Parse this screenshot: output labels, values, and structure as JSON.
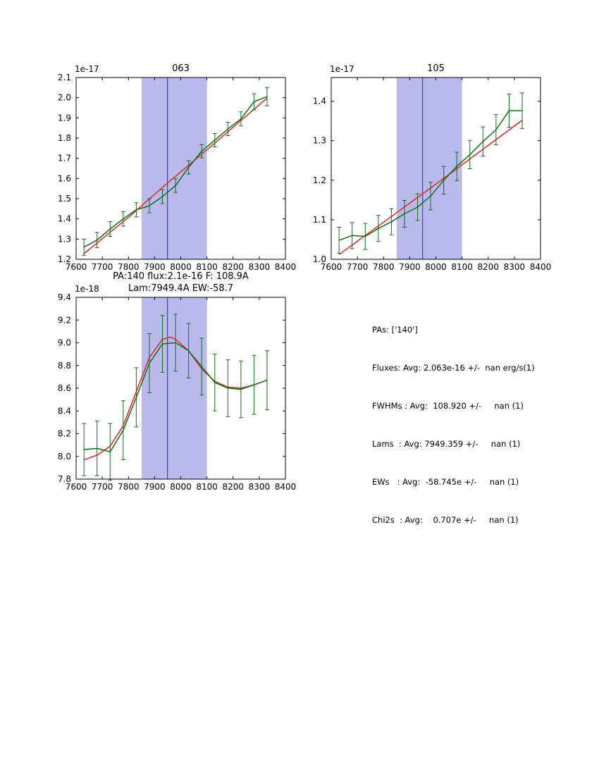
{
  "figure": {
    "background": "#ffffff"
  },
  "chart_data": [
    {
      "id": "plot-063",
      "type": "line",
      "title_lines": [
        "063"
      ],
      "offset_label": "1e-17",
      "xlabel": "",
      "ylabel": "",
      "xlim": [
        7600,
        8400
      ],
      "ylim": [
        1.2,
        2.1
      ],
      "xticks": [
        7600,
        7700,
        7800,
        7900,
        8000,
        8100,
        8200,
        8300,
        8400
      ],
      "yticks": [
        1.2,
        1.3,
        1.4,
        1.5,
        1.6,
        1.7,
        1.8,
        1.9,
        2.0,
        2.1
      ],
      "grid": false,
      "legend": "none",
      "band": {
        "x0": 7850,
        "x1": 8100,
        "color": "#b9b9ee"
      },
      "vline": {
        "x": 7949.359,
        "color": "#2a2a9c"
      },
      "series": [
        {
          "name": "fit",
          "color": "#e02424",
          "x": [
            7630,
            7800,
            7950,
            8100,
            8330
          ],
          "y": [
            1.228,
            1.408,
            1.578,
            1.742,
            1.998
          ]
        },
        {
          "name": "spectrum",
          "color": "#0f6e14",
          "x": [
            7630,
            7680,
            7730,
            7780,
            7830,
            7880,
            7930,
            7980,
            8030,
            8080,
            8130,
            8180,
            8230,
            8280,
            8330
          ],
          "y": [
            1.26,
            1.295,
            1.35,
            1.4,
            1.445,
            1.465,
            1.51,
            1.565,
            1.655,
            1.735,
            1.79,
            1.845,
            1.895,
            1.98,
            2.005
          ],
          "yerr": [
            0.04,
            0.038,
            0.037,
            0.036,
            0.035,
            0.035,
            0.034,
            0.034,
            0.033,
            0.033,
            0.033,
            0.033,
            0.035,
            0.04,
            0.045
          ]
        }
      ]
    },
    {
      "id": "plot-105",
      "type": "line",
      "title_lines": [
        "105"
      ],
      "offset_label": "1e-17",
      "xlabel": "",
      "ylabel": "",
      "xlim": [
        7600,
        8400
      ],
      "ylim": [
        1.0,
        1.46
      ],
      "xticks": [
        7600,
        7700,
        7800,
        7900,
        8000,
        8100,
        8200,
        8300,
        8400
      ],
      "yticks": [
        1.0,
        1.1,
        1.2,
        1.3,
        1.4
      ],
      "grid": false,
      "legend": "none",
      "band": {
        "x0": 7850,
        "x1": 8100,
        "color": "#b9b9ee"
      },
      "vline": {
        "x": 7949.359,
        "color": "#2a2a9c"
      },
      "series": [
        {
          "name": "fit",
          "color": "#e02424",
          "x": [
            7630,
            8000,
            8330
          ],
          "y": [
            1.012,
            1.19,
            1.352
          ]
        },
        {
          "name": "spectrum",
          "color": "#0f6e14",
          "x": [
            7630,
            7680,
            7730,
            7780,
            7830,
            7880,
            7930,
            7980,
            8030,
            8080,
            8130,
            8180,
            8230,
            8280,
            8330
          ],
          "y": [
            1.048,
            1.06,
            1.058,
            1.078,
            1.095,
            1.115,
            1.132,
            1.16,
            1.2,
            1.235,
            1.265,
            1.298,
            1.328,
            1.376,
            1.376
          ],
          "yerr": [
            0.033,
            0.033,
            0.033,
            0.033,
            0.033,
            0.034,
            0.034,
            0.035,
            0.035,
            0.036,
            0.036,
            0.037,
            0.038,
            0.042,
            0.045
          ]
        }
      ]
    },
    {
      "id": "plot-pa140",
      "type": "line",
      "title_lines": [
        "PA:140 flux:2.1e-16 F: 108.9A",
        "Lam:7949.4A EW:-58.7"
      ],
      "offset_label": "1e-18",
      "xlabel": "",
      "ylabel": "",
      "xlim": [
        7600,
        8400
      ],
      "ylim": [
        7.8,
        9.4
      ],
      "xticks": [
        7600,
        7700,
        7800,
        7900,
        8000,
        8100,
        8200,
        8300,
        8400
      ],
      "yticks": [
        7.8,
        8.0,
        8.2,
        8.4,
        8.6,
        8.8,
        9.0,
        9.2,
        9.4
      ],
      "grid": false,
      "legend": "none",
      "band": {
        "x0": 7850,
        "x1": 8100,
        "color": "#b9b9ee"
      },
      "vline": {
        "x": 7949.359,
        "color": "#2a2a9c"
      },
      "series": [
        {
          "name": "fit",
          "color": "#e02424",
          "x": [
            7630,
            7680,
            7730,
            7780,
            7830,
            7880,
            7930,
            7960,
            7980,
            8030,
            8080,
            8130,
            8180,
            8230,
            8280,
            8330
          ],
          "y": [
            7.97,
            8.01,
            8.09,
            8.27,
            8.57,
            8.87,
            9.03,
            9.05,
            9.03,
            8.93,
            8.77,
            8.66,
            8.61,
            8.6,
            8.63,
            8.67
          ]
        },
        {
          "name": "spectrum",
          "color": "#0f6e14",
          "x": [
            7630,
            7680,
            7730,
            7780,
            7830,
            7880,
            7930,
            7980,
            8030,
            8080,
            8130,
            8180,
            8230,
            8280,
            8330
          ],
          "y": [
            8.06,
            8.07,
            8.04,
            8.23,
            8.52,
            8.82,
            8.99,
            9.0,
            8.93,
            8.79,
            8.65,
            8.6,
            8.59,
            8.63,
            8.67
          ],
          "yerr": [
            0.23,
            0.24,
            0.25,
            0.26,
            0.26,
            0.26,
            0.25,
            0.25,
            0.24,
            0.25,
            0.25,
            0.25,
            0.25,
            0.26,
            0.26
          ]
        }
      ]
    }
  ],
  "stats_panel": {
    "lines": [
      "PAs: ['140']",
      "Fluxes: Avg: 2.063e-16 +/-  nan erg/s(1)",
      "FWHMs : Avg:  108.920 +/-     nan (1)",
      "Lams  : Avg: 7949.359 +/-     nan (1)",
      "EWs   : Avg:  -58.745e +/-     nan (1)",
      "Chi2s  : Avg:    0.707e +/-     nan (1)"
    ]
  }
}
